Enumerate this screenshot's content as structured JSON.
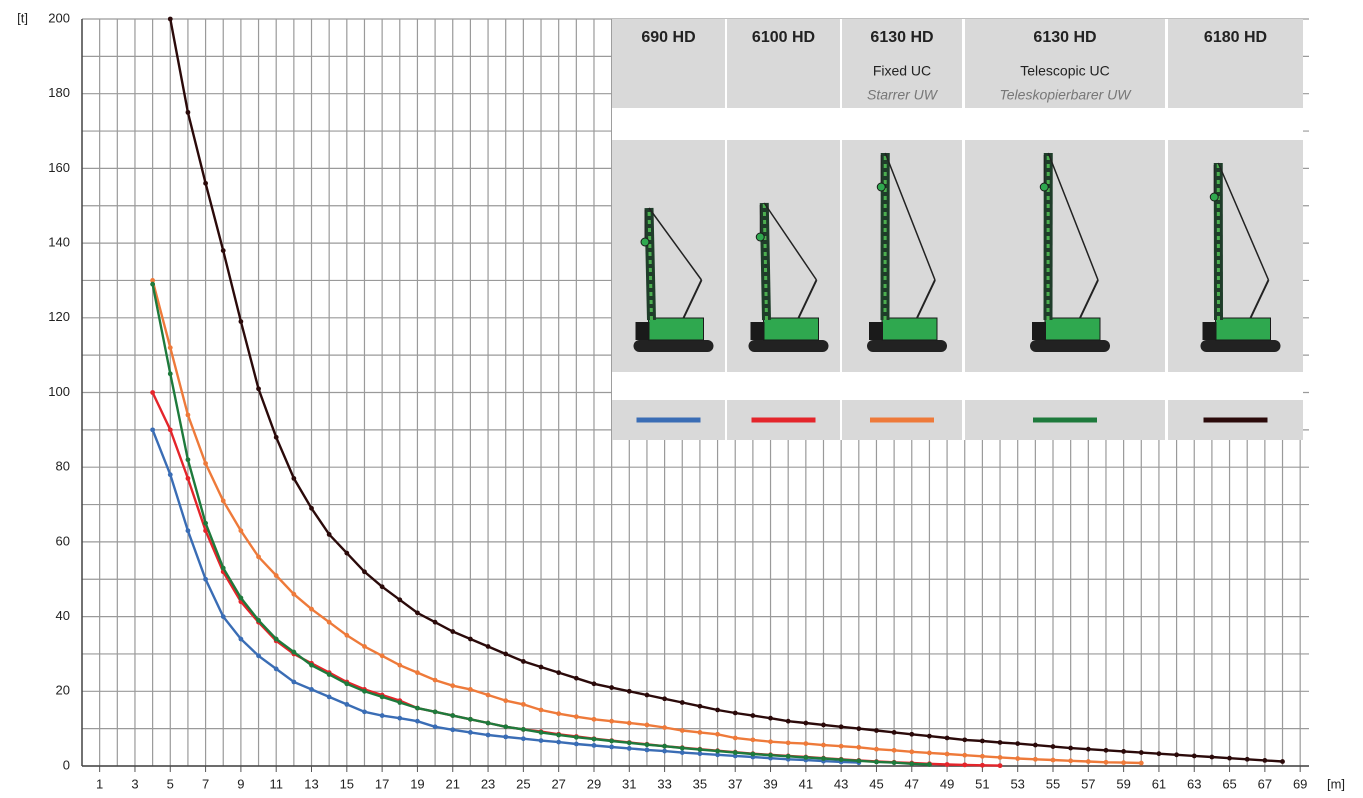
{
  "chart_data": {
    "type": "line",
    "y_label": "[t]",
    "x_label": "[m]",
    "xlim": [
      0,
      69.5
    ],
    "ylim": [
      0,
      200
    ],
    "xticks": [
      1,
      3,
      5,
      7,
      9,
      11,
      13,
      15,
      17,
      19,
      21,
      23,
      25,
      27,
      29,
      31,
      33,
      35,
      37,
      39,
      41,
      43,
      45,
      47,
      49,
      51,
      53,
      55,
      57,
      59,
      61,
      63,
      65,
      67,
      69
    ],
    "xminor": [
      2,
      4,
      6,
      8,
      10,
      12,
      14,
      16,
      18,
      20,
      22,
      24,
      26,
      28,
      30,
      32,
      34,
      36,
      38,
      40,
      42,
      44,
      46,
      48,
      50,
      52,
      54,
      56,
      58,
      60,
      62,
      64,
      66,
      68
    ],
    "yticks": [
      0,
      20,
      40,
      60,
      80,
      100,
      120,
      140,
      160,
      180,
      200
    ],
    "yminor": [
      10,
      30,
      50,
      70,
      90,
      110,
      130,
      150,
      170,
      190
    ],
    "grid": true,
    "series": [
      {
        "name": "690 HD",
        "color": "#3a6db5",
        "x": [
          4,
          5,
          6,
          7,
          8,
          9,
          10,
          11,
          12,
          13,
          14,
          15,
          16,
          17,
          18,
          19,
          20,
          21,
          22,
          23,
          24,
          25,
          26,
          27,
          28,
          29,
          30,
          31,
          32,
          33,
          34,
          35,
          36,
          37,
          38,
          39,
          40,
          41,
          42,
          43,
          44
        ],
        "values": [
          90,
          78,
          63,
          50,
          40,
          34,
          29.5,
          26,
          22.5,
          20.5,
          18.5,
          16.5,
          14.5,
          13.5,
          12.8,
          12,
          10.5,
          9.7,
          9,
          8.3,
          7.8,
          7.3,
          6.8,
          6.4,
          5.9,
          5.5,
          5.1,
          4.7,
          4.3,
          4,
          3.6,
          3.3,
          3,
          2.7,
          2.4,
          2.1,
          1.8,
          1.6,
          1.3,
          1.1,
          0.9
        ]
      },
      {
        "name": "6100 HD",
        "color": "#e4252b",
        "x": [
          4,
          5,
          6,
          7,
          8,
          9,
          10,
          11,
          12,
          13,
          14,
          15,
          16,
          17,
          18,
          19,
          20,
          21,
          22,
          23,
          24,
          25,
          26,
          27,
          28,
          29,
          30,
          31,
          32,
          33,
          34,
          35,
          36,
          37,
          38,
          39,
          40,
          41,
          42,
          43,
          44,
          45,
          46,
          47,
          48,
          49,
          50,
          51,
          52
        ],
        "values": [
          100,
          90,
          77,
          63,
          52,
          44,
          38.5,
          33.5,
          30,
          27.5,
          25,
          22.5,
          20.5,
          19,
          17.5,
          15.5,
          14.5,
          13.5,
          12.5,
          11.5,
          10.5,
          9.8,
          9.2,
          8.5,
          7.9,
          7.3,
          6.8,
          6.3,
          5.8,
          5.3,
          4.9,
          4.5,
          4.1,
          3.7,
          3.3,
          3,
          2.7,
          2.4,
          2.1,
          1.8,
          1.5,
          1.2,
          1,
          0.8,
          0.6,
          0.4,
          0.3,
          0.2,
          0.1
        ]
      },
      {
        "name": "6130 HD",
        "subtitle": "Fixed UC",
        "subtitle_de": "Starrer UW",
        "color": "#ee7a3a",
        "x": [
          4,
          5,
          6,
          7,
          8,
          9,
          10,
          11,
          12,
          13,
          14,
          15,
          16,
          17,
          18,
          19,
          20,
          21,
          22,
          23,
          24,
          25,
          26,
          27,
          28,
          29,
          30,
          31,
          32,
          33,
          34,
          35,
          36,
          37,
          38,
          39,
          40,
          41,
          42,
          43,
          44,
          45,
          46,
          47,
          48,
          49,
          50,
          51,
          52,
          53,
          54,
          55,
          56,
          57,
          58,
          59,
          60
        ],
        "values": [
          130,
          112,
          94,
          81,
          71,
          63,
          56,
          51,
          46,
          42,
          38.5,
          35,
          32,
          29.5,
          27,
          25,
          23,
          21.5,
          20.5,
          19,
          17.5,
          16.5,
          15,
          14,
          13.2,
          12.5,
          12,
          11.5,
          11,
          10.3,
          9.5,
          9,
          8.5,
          7.5,
          7,
          6.5,
          6.2,
          6,
          5.6,
          5.3,
          5,
          4.5,
          4.2,
          3.8,
          3.5,
          3.2,
          2.9,
          2.6,
          2.3,
          2,
          1.8,
          1.6,
          1.4,
          1.2,
          1,
          0.9,
          0.8
        ]
      },
      {
        "name": "6130 HD",
        "subtitle": "Telescopic UC",
        "subtitle_de": "Teleskopierbarer UW",
        "color": "#1e7a3c",
        "x": [
          4,
          5,
          6,
          7,
          8,
          9,
          10,
          11,
          12,
          13,
          14,
          15,
          16,
          17,
          18,
          19,
          20,
          21,
          22,
          23,
          24,
          25,
          26,
          27,
          28,
          29,
          30,
          31,
          32,
          33,
          34,
          35,
          36,
          37,
          38,
          39,
          40,
          41,
          42,
          43,
          44,
          45,
          46,
          47,
          48
        ],
        "values": [
          129,
          105,
          82,
          65,
          53,
          45,
          39,
          34,
          30.5,
          27,
          24.5,
          22,
          20,
          18.5,
          17,
          15.5,
          14.5,
          13.5,
          12.5,
          11.5,
          10.5,
          9.8,
          9,
          8.3,
          7.7,
          7.2,
          6.7,
          6.2,
          5.7,
          5.3,
          4.8,
          4.4,
          4,
          3.6,
          3.2,
          2.9,
          2.6,
          2.3,
          2,
          1.7,
          1.4,
          1.1,
          0.9,
          0.6,
          0.4
        ]
      },
      {
        "name": "6180 HD",
        "color": "#2b0a0a",
        "x": [
          5,
          6,
          7,
          8,
          9,
          10,
          11,
          12,
          13,
          14,
          15,
          16,
          17,
          18,
          19,
          20,
          21,
          22,
          23,
          24,
          25,
          26,
          27,
          28,
          29,
          30,
          31,
          32,
          33,
          34,
          35,
          36,
          37,
          38,
          39,
          40,
          41,
          42,
          43,
          44,
          45,
          46,
          47,
          48,
          49,
          50,
          51,
          52,
          53,
          54,
          55,
          56,
          57,
          58,
          59,
          60,
          61,
          62,
          63,
          64,
          65,
          66,
          67,
          68
        ],
        "values": [
          200,
          175,
          156,
          138,
          119,
          101,
          88,
          77,
          69,
          62,
          57,
          52,
          48,
          44.5,
          41,
          38.5,
          36,
          34,
          32,
          30,
          28,
          26.5,
          25,
          23.5,
          22,
          21,
          20,
          19,
          18,
          17,
          16,
          15,
          14.2,
          13.5,
          12.8,
          12,
          11.5,
          11,
          10.5,
          10,
          9.5,
          9,
          8.5,
          8,
          7.5,
          7,
          6.7,
          6.3,
          6,
          5.6,
          5.2,
          4.8,
          4.5,
          4.2,
          3.9,
          3.6,
          3.3,
          3,
          2.7,
          2.4,
          2.1,
          1.8,
          1.5,
          1.2
        ]
      }
    ]
  }
}
